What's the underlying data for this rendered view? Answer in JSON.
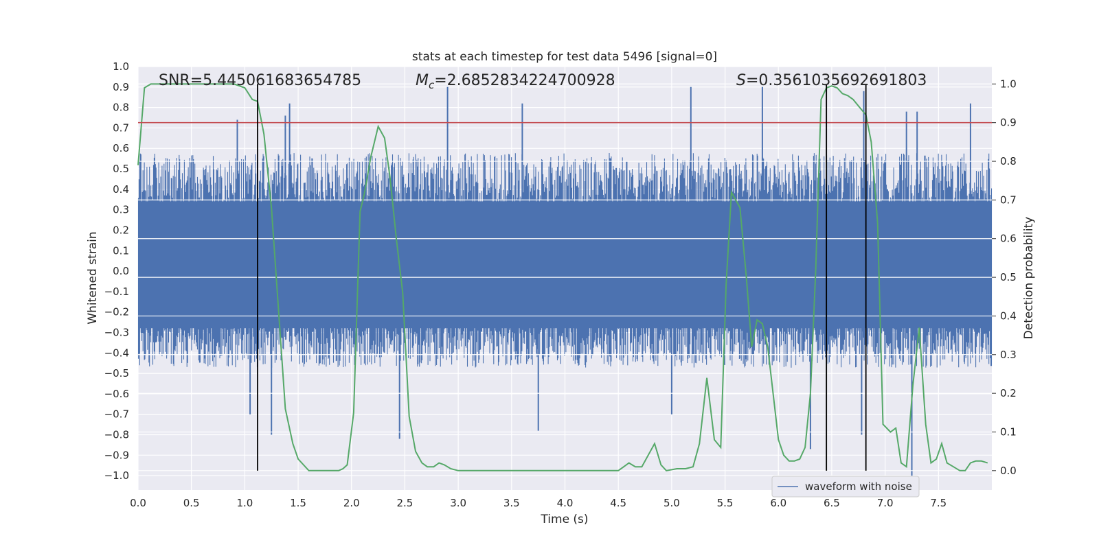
{
  "chart_data": {
    "type": "line",
    "title": "stats at each timestep for test data 5496 [signal=0]",
    "xlabel": "Time (s)",
    "ylabel_left": "Whitened strain",
    "ylabel_right": "Detection probability",
    "xlim": [
      0.0,
      8.0
    ],
    "ylim_left": [
      -1.07,
      1.0
    ],
    "ylim_right": [
      -0.05,
      1.045
    ],
    "x_ticks": [
      "0.0",
      "0.5",
      "1.0",
      "1.5",
      "2.0",
      "2.5",
      "3.0",
      "3.5",
      "4.0",
      "4.5",
      "5.0",
      "5.5",
      "6.0",
      "6.5",
      "7.0",
      "7.5"
    ],
    "y_ticks_left": [
      "1.0",
      "0.9",
      "0.8",
      "0.7",
      "0.6",
      "0.5",
      "0.4",
      "0.3",
      "0.2",
      "0.1",
      "0.0",
      "−0.1",
      "−0.2",
      "−0.3",
      "−0.4",
      "−0.5",
      "−0.6",
      "−0.7",
      "−0.8",
      "−0.9",
      "−1.0"
    ],
    "y_ticks_right": [
      "1.0",
      "0.9",
      "0.8",
      "0.7",
      "0.6",
      "0.5",
      "0.4",
      "0.3",
      "0.2",
      "0.1",
      "0.0"
    ],
    "annotations": {
      "snr": "SNR=5.445061683654785",
      "mc_symbol": "M",
      "mc_sub": "c",
      "mc_value": "=2.6852834224700928",
      "s_symbol": "S",
      "s_value": "=0.3561035692691803"
    },
    "threshold": 0.9,
    "event_lines_x": [
      1.12,
      6.45,
      6.82
    ],
    "series": [
      {
        "name": "waveform with noise",
        "axis": "left",
        "style": "noise-band",
        "envelope": {
          "typical_max": 0.55,
          "typical_min": -0.45
        },
        "peak_spikes_x": [
          0.93,
          1.38,
          1.42,
          2.9,
          3.6,
          5.18,
          5.85,
          6.8,
          7.2,
          7.3,
          7.8
        ],
        "peak_spikes_y": [
          0.74,
          0.76,
          0.82,
          0.9,
          0.82,
          0.9,
          0.9,
          0.88,
          0.78,
          0.78,
          0.82
        ],
        "trough_spikes_x": [
          1.05,
          1.25,
          2.45,
          3.75,
          5.0,
          6.3,
          6.78,
          7.25
        ],
        "trough_spikes_y": [
          -0.7,
          -0.8,
          -0.82,
          -0.78,
          -0.7,
          -0.87,
          -0.8,
          -1.0
        ]
      },
      {
        "name": "",
        "axis": "right",
        "style": "line",
        "x": [
          0.0,
          0.06,
          0.12,
          0.3,
          0.5,
          0.7,
          0.9,
          1.0,
          1.07,
          1.12,
          1.18,
          1.25,
          1.32,
          1.38,
          1.45,
          1.5,
          1.6,
          1.7,
          1.8,
          1.88,
          1.92,
          1.96,
          2.02,
          2.08,
          2.12,
          2.18,
          2.25,
          2.31,
          2.36,
          2.42,
          2.48,
          2.54,
          2.6,
          2.66,
          2.71,
          2.77,
          2.82,
          2.87,
          2.93,
          3.0,
          3.2,
          3.4,
          3.6,
          3.8,
          4.0,
          4.2,
          4.4,
          4.5,
          4.55,
          4.6,
          4.66,
          4.72,
          4.78,
          4.84,
          4.9,
          4.95,
          5.05,
          5.13,
          5.2,
          5.26,
          5.33,
          5.4,
          5.46,
          5.51,
          5.56,
          5.6,
          5.64,
          5.7,
          5.75,
          5.8,
          5.85,
          5.9,
          5.95,
          6.0,
          6.05,
          6.1,
          6.15,
          6.2,
          6.25,
          6.3,
          6.35,
          6.4,
          6.45,
          6.5,
          6.55,
          6.6,
          6.65,
          6.7,
          6.76,
          6.82,
          6.87,
          6.93,
          6.98,
          7.05,
          7.1,
          7.15,
          7.2,
          7.26,
          7.32,
          7.38,
          7.43,
          7.48,
          7.53,
          7.58,
          7.64,
          7.7,
          7.75,
          7.8,
          7.85,
          7.9,
          7.96
        ],
        "y": [
          0.79,
          0.99,
          1.0,
          1.0,
          1.0,
          1.0,
          1.0,
          0.99,
          0.96,
          0.955,
          0.87,
          0.68,
          0.4,
          0.16,
          0.07,
          0.03,
          0.0,
          0.0,
          0.0,
          0.0,
          0.005,
          0.015,
          0.15,
          0.67,
          0.715,
          0.81,
          0.89,
          0.86,
          0.76,
          0.6,
          0.46,
          0.14,
          0.05,
          0.02,
          0.01,
          0.01,
          0.02,
          0.015,
          0.005,
          0.0,
          0.0,
          0.0,
          0.0,
          0.0,
          0.0,
          0.0,
          0.0,
          0.0,
          0.01,
          0.02,
          0.01,
          0.01,
          0.04,
          0.07,
          0.015,
          0.0,
          0.005,
          0.005,
          0.01,
          0.07,
          0.24,
          0.08,
          0.06,
          0.48,
          0.72,
          0.7,
          0.68,
          0.5,
          0.32,
          0.39,
          0.38,
          0.32,
          0.2,
          0.08,
          0.04,
          0.025,
          0.025,
          0.03,
          0.06,
          0.2,
          0.52,
          0.96,
          0.99,
          0.995,
          0.99,
          0.975,
          0.97,
          0.96,
          0.94,
          0.92,
          0.85,
          0.64,
          0.12,
          0.1,
          0.11,
          0.02,
          0.01,
          0.22,
          0.37,
          0.12,
          0.02,
          0.03,
          0.07,
          0.02,
          0.01,
          0.0,
          0.0,
          0.02,
          0.025,
          0.025,
          0.02
        ]
      }
    ],
    "grid": true,
    "legend": {
      "placement": "lower-right",
      "entries": [
        "waveform with noise"
      ]
    },
    "colors": {
      "background": "#eaeaf2",
      "grid": "#ffffff",
      "noise": "#4c72b0",
      "probability": "#55a868",
      "threshold": "#c44e52",
      "event_line": "#000000"
    }
  }
}
